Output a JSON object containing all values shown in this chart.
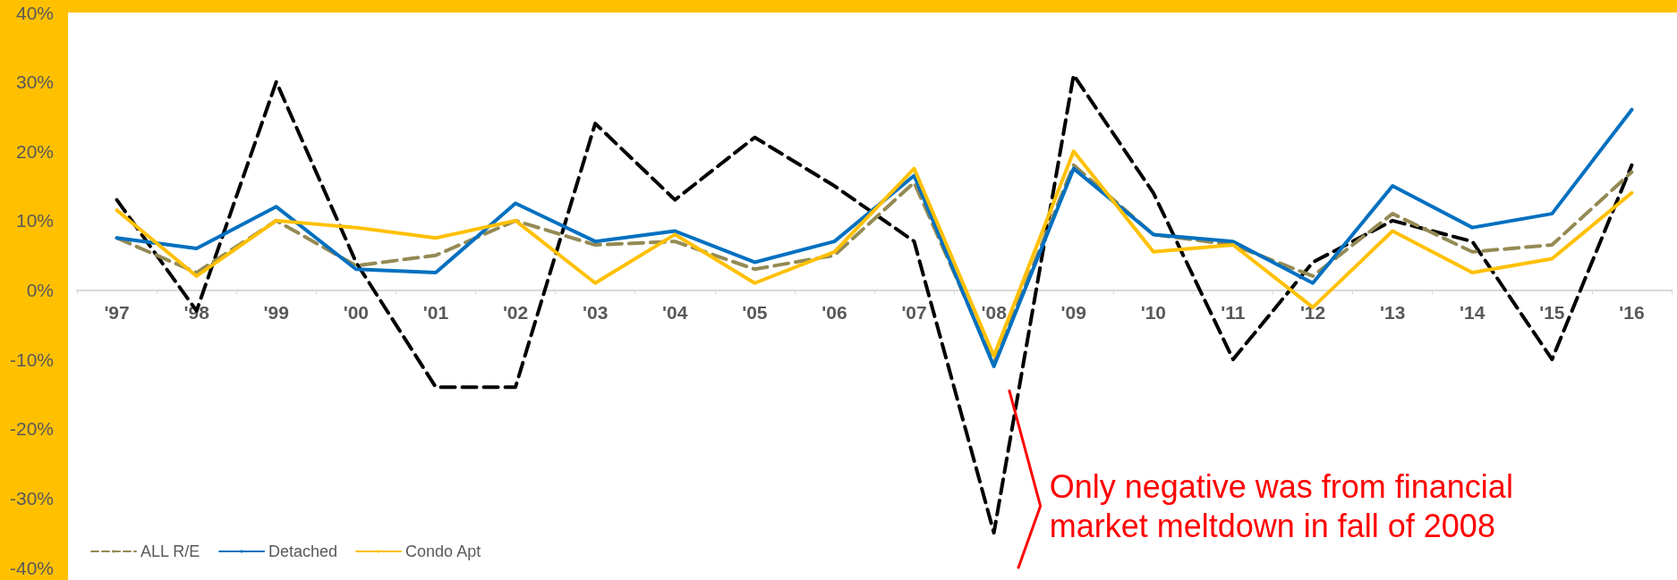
{
  "chart_data": {
    "type": "line",
    "categories": [
      "'97",
      "'98",
      "'99",
      "'00",
      "'01",
      "'02",
      "'03",
      "'04",
      "'05",
      "'06",
      "'07",
      "'08",
      "'09",
      "'10",
      "'11",
      "'12",
      "'13",
      "'14",
      "'15",
      "'16"
    ],
    "series": [
      {
        "color": "#000000",
        "line_style": "dashed",
        "values": [
          13,
          -3,
          30,
          4,
          -14,
          -14,
          24,
          13,
          22,
          15,
          7,
          -35,
          31,
          14,
          -10,
          4,
          10,
          7,
          -10,
          18
        ]
      },
      {
        "name": "ALL R/E",
        "color": "#948A54",
        "line_style": "dashed",
        "values": [
          7.5,
          2.5,
          10,
          3.5,
          5,
          10,
          6.5,
          7,
          3,
          5,
          15.5,
          -10.5,
          18,
          8,
          6.5,
          2,
          11,
          5.5,
          6.5,
          17
        ]
      },
      {
        "name": "Detached",
        "color": "#0070C0",
        "line_style": "solid",
        "values": [
          7.5,
          6,
          12,
          3,
          2.5,
          12.5,
          7,
          8.5,
          4,
          7,
          16.5,
          -11,
          17.5,
          8,
          7,
          1,
          15,
          9,
          11,
          26
        ]
      },
      {
        "name": "Condo Apt",
        "color": "#FFC000",
        "line_style": "solid",
        "values": [
          11.5,
          2,
          10,
          9,
          7.5,
          10,
          1,
          8,
          1,
          5.5,
          17.5,
          -9.5,
          20,
          5.5,
          6.5,
          -2.5,
          8.5,
          2.5,
          4.5,
          14
        ]
      }
    ],
    "ylim": [
      -40,
      40
    ],
    "yticks": [
      {
        "value": -40,
        "label": "-40%"
      },
      {
        "value": -30,
        "label": "-30%"
      },
      {
        "value": -20,
        "label": "-20%"
      },
      {
        "value": -10,
        "label": "-10%"
      },
      {
        "value": 0,
        "label": "0%"
      },
      {
        "value": 10,
        "label": "10%"
      },
      {
        "value": 20,
        "label": "20%"
      },
      {
        "value": 30,
        "label": "30%"
      },
      {
        "value": 40,
        "label": "40%"
      }
    ],
    "grid": false,
    "legend": "bottom left",
    "marker": "none",
    "annotations": [
      {
        "text": "Only negative was from financial\nmarket meltdown in fall of 2008",
        "x": "'08",
        "y": -35
      }
    ]
  }
}
